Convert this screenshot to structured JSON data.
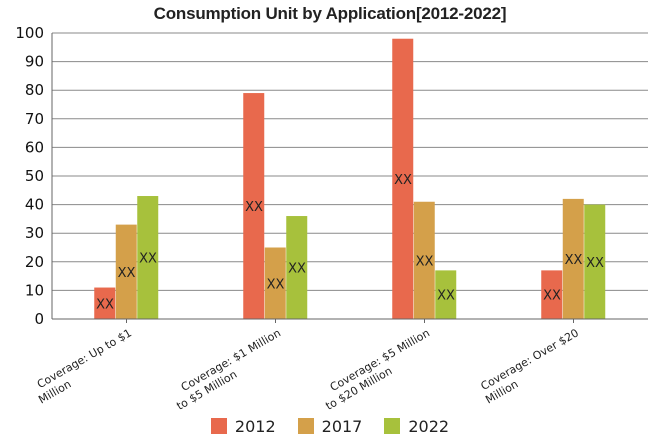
{
  "chart_data": {
    "type": "bar",
    "title": "Consumption Unit by  Application[2012-2022]",
    "categories": [
      [
        "Coverage: Up to $1",
        "Million"
      ],
      [
        "Coverage: $1 Million",
        "to $5 Million"
      ],
      [
        "Coverage: $5 Million",
        "to $20 Million"
      ],
      [
        "Coverage: Over $20",
        "Million"
      ]
    ],
    "series": [
      {
        "name": "2012",
        "color": "#e8694d",
        "values": [
          11,
          79,
          98,
          17
        ]
      },
      {
        "name": "2017",
        "color": "#d4a04a",
        "values": [
          33,
          25,
          41,
          42
        ]
      },
      {
        "name": "2022",
        "color": "#a7c13c",
        "values": [
          43,
          36,
          17,
          40
        ]
      }
    ],
    "data_label": "XX",
    "ylim": [
      0,
      100
    ],
    "yticks": [
      0,
      10,
      20,
      30,
      40,
      50,
      60,
      70,
      80,
      90,
      100
    ],
    "grid": true,
    "legend_position": "bottom"
  }
}
